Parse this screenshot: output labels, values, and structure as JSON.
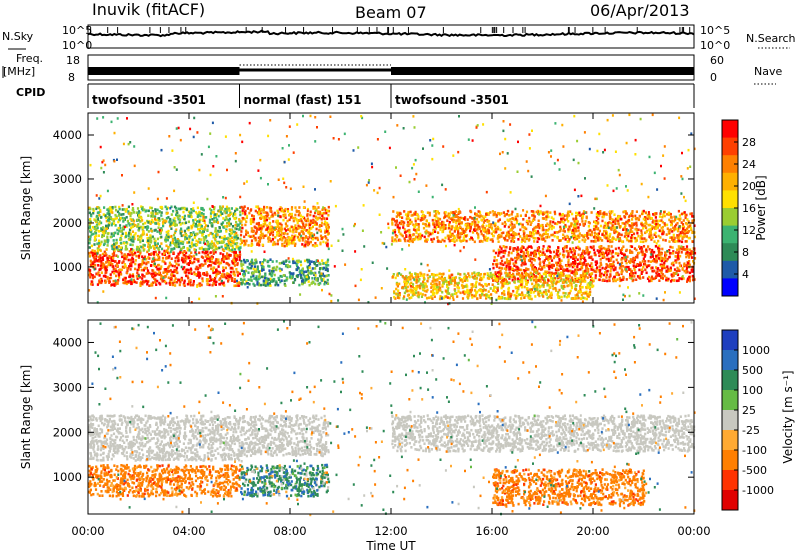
{
  "header": {
    "station": "Inuvik (fitACF)",
    "beam": "Beam 07",
    "date": "06/Apr/2013"
  },
  "side_labels": {
    "nsky": "N.Sky",
    "freq": "Freq.",
    "freq_unit": "[MHz]",
    "cpid": "CPID",
    "nsearch": "N.Search",
    "nave": "Nave"
  },
  "small_axes": {
    "nsky_ticks": [
      "10^5",
      "10^0"
    ],
    "nsearch_ticks": [
      "10^5",
      "10^0"
    ],
    "freq_ticks": [
      "18",
      "8"
    ],
    "nave_ticks": [
      "60",
      "0"
    ]
  },
  "cpid_segments": [
    {
      "label": "twofsound -3501",
      "start_hour": 0,
      "end_hour": 6
    },
    {
      "label": "normal (fast) 151",
      "start_hour": 6,
      "end_hour": 12
    },
    {
      "label": "twofsound -3501",
      "start_hour": 12,
      "end_hour": 24
    }
  ],
  "axes": {
    "x_label": "Time UT",
    "x_ticks": [
      "00:00",
      "04:00",
      "08:00",
      "12:00",
      "16:00",
      "20:00",
      "00:00"
    ],
    "x_range_hours": [
      0,
      24
    ],
    "y_label": "Slant Range [km]",
    "y_ticks": [
      1000,
      2000,
      3000,
      4000
    ],
    "y_range_km": [
      180,
      4500
    ]
  },
  "colorbars": {
    "power": {
      "label": "Power [dB]",
      "ticks": [
        "28",
        "24",
        "20",
        "16",
        "12",
        "8",
        "4"
      ],
      "colors": [
        "#ff0000",
        "#ff4000",
        "#ff8000",
        "#ffb000",
        "#ffe000",
        "#9acd32",
        "#3cb371",
        "#2e8b57",
        "#1e5aa8",
        "#0000ff"
      ]
    },
    "velocity": {
      "label": "Velocity [m s⁻¹]",
      "ticks": [
        "1000",
        "500",
        "100",
        "25",
        "-25",
        "-100",
        "-500",
        "-1000"
      ],
      "colors": [
        "#1f3fbf",
        "#2a6fbf",
        "#2e8b57",
        "#66bb44",
        "#c8c8c0",
        "#ffaa33",
        "#ff7f00",
        "#ff3300",
        "#e00000"
      ]
    }
  },
  "chart_data": [
    {
      "type": "heatmap",
      "title": "Power",
      "x": "Time UT (hours)",
      "y": "Slant Range [km]",
      "colorbar_label": "Power [dB]",
      "regions": [
        {
          "t0": 0,
          "t1": 6,
          "r0": 600,
          "r1": 1400,
          "value_db": 28
        },
        {
          "t0": 0,
          "t1": 6,
          "r0": 1400,
          "r1": 2400,
          "value_db": 14
        },
        {
          "t0": 6,
          "t1": 9.5,
          "r0": 600,
          "r1": 1200,
          "value_db": 10
        },
        {
          "t0": 6,
          "t1": 9.5,
          "r0": 1500,
          "r1": 2400,
          "value_db": 24
        },
        {
          "t0": 12,
          "t1": 24,
          "r0": 1600,
          "r1": 2300,
          "value_db": 24
        },
        {
          "t0": 16,
          "t1": 24,
          "r0": 700,
          "r1": 1500,
          "value_db": 28
        },
        {
          "t0": 12,
          "t1": 20,
          "r0": 300,
          "r1": 900,
          "value_db": 20
        }
      ]
    },
    {
      "type": "heatmap",
      "title": "Velocity",
      "x": "Time UT (hours)",
      "y": "Slant Range [km]",
      "colorbar_label": "Velocity [m s⁻¹]",
      "regions": [
        {
          "t0": 0,
          "t1": 6,
          "r0": 600,
          "r1": 1300,
          "value_ms": -300
        },
        {
          "t0": 0,
          "t1": 6,
          "r0": 1400,
          "r1": 2400,
          "value_ms": 0
        },
        {
          "t0": 6,
          "t1": 9.5,
          "r0": 600,
          "r1": 1300,
          "value_ms": 200
        },
        {
          "t0": 6,
          "t1": 9.5,
          "r0": 1500,
          "r1": 2400,
          "value_ms": 0
        },
        {
          "t0": 12,
          "t1": 24,
          "r0": 1600,
          "r1": 2400,
          "value_ms": 0
        },
        {
          "t0": 16,
          "t1": 22,
          "r0": 400,
          "r1": 1200,
          "value_ms": -300
        }
      ]
    }
  ]
}
